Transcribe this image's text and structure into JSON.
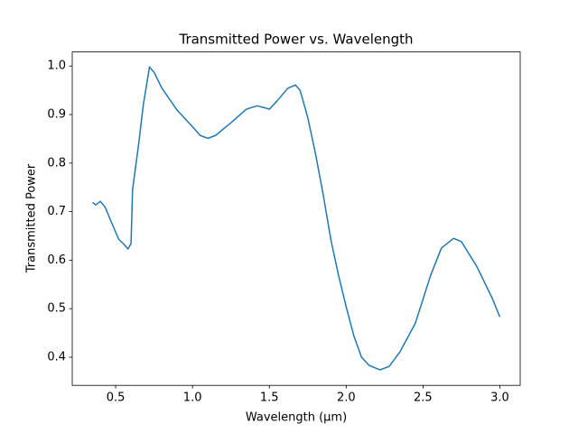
{
  "chart_data": {
    "type": "line",
    "title": "Transmitted Power vs. Wavelength",
    "xlabel": "Wavelength (µm)",
    "ylabel": "Transmitted Power",
    "series": [
      {
        "color": "#1f77b4",
        "x": [
          0.35,
          0.37,
          0.4,
          0.43,
          0.47,
          0.52,
          0.55,
          0.58,
          0.6,
          0.61,
          0.65,
          0.68,
          0.72,
          0.75,
          0.8,
          0.9,
          1.0,
          1.05,
          1.1,
          1.15,
          1.25,
          1.35,
          1.42,
          1.47,
          1.5,
          1.55,
          1.62,
          1.67,
          1.7,
          1.75,
          1.8,
          1.85,
          1.9,
          1.95,
          2.0,
          2.05,
          2.1,
          2.15,
          2.22,
          2.28,
          2.35,
          2.45,
          2.55,
          2.62,
          2.7,
          2.75,
          2.85,
          2.95,
          3.0
        ],
        "values": [
          0.719,
          0.714,
          0.721,
          0.71,
          0.68,
          0.643,
          0.634,
          0.623,
          0.634,
          0.745,
          0.84,
          0.92,
          0.998,
          0.987,
          0.955,
          0.909,
          0.875,
          0.857,
          0.851,
          0.857,
          0.883,
          0.911,
          0.918,
          0.914,
          0.911,
          0.928,
          0.954,
          0.961,
          0.95,
          0.894,
          0.82,
          0.736,
          0.643,
          0.569,
          0.504,
          0.444,
          0.4,
          0.383,
          0.374,
          0.381,
          0.411,
          0.47,
          0.569,
          0.625,
          0.645,
          0.638,
          0.587,
          0.522,
          0.483
        ]
      }
    ],
    "xlim": [
      0.2175,
      3.1325
    ],
    "ylim": [
      0.342,
      1.029
    ],
    "xticks": [
      0.5,
      {
        "value": 1,
        "label": "1.0"
      },
      1.5,
      {
        "value": 2,
        "label": "2.0"
      },
      2.5,
      {
        "value": 3,
        "label": "3.0"
      }
    ],
    "yticks": [
      0.4,
      0.5,
      0.6,
      0.7,
      0.8,
      0.9,
      {
        "value": 1,
        "label": "1.0"
      }
    ]
  }
}
